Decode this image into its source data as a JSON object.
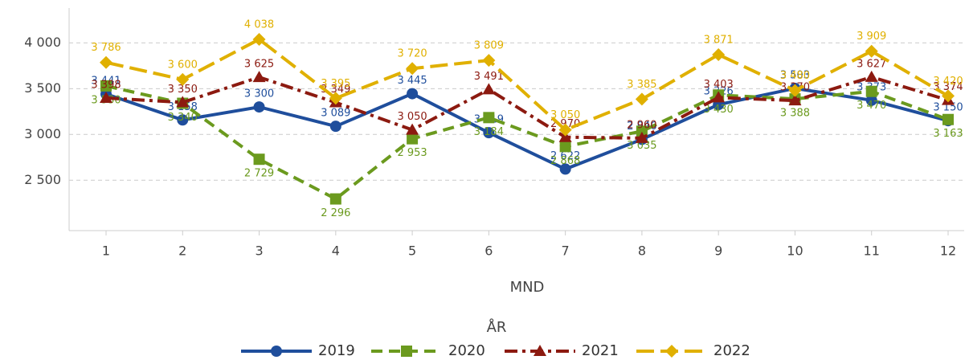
{
  "chart_data": {
    "type": "line",
    "x_label": "MND",
    "legend_title": "ÅR",
    "categories": [
      "1",
      "2",
      "3",
      "4",
      "5",
      "6",
      "7",
      "8",
      "9",
      "10",
      "11",
      "12"
    ],
    "ylim": [
      1950,
      4380
    ],
    "yticks": [
      {
        "value": 2500,
        "label": "2 500"
      },
      {
        "value": 3000,
        "label": "3 000"
      },
      {
        "value": 3500,
        "label": "3 500"
      },
      {
        "value": 4000,
        "label": "4 000"
      }
    ],
    "grid": true,
    "legend": "bottom",
    "series": [
      {
        "name": "2019",
        "color": "#1f4e9c",
        "marker": "circle",
        "dash": "solid",
        "values": [
          3441,
          3158,
          3300,
          3089,
          3445,
          3019,
          2622,
          2946,
          3326,
          3503,
          3373,
          3150
        ],
        "value_labels": [
          "3 441",
          "3 158",
          "3 300",
          "3 089",
          "3 445",
          "3 019",
          "2 622",
          "2 946",
          "3 326",
          "3 503",
          "3 373",
          "3 150"
        ]
      },
      {
        "name": "2020",
        "color": "#6b9a1e",
        "marker": "square",
        "dash": "dash",
        "values": [
          3530,
          3340,
          2729,
          2296,
          2953,
          3184,
          2868,
          3035,
          3430,
          3388,
          3470,
          3163
        ],
        "value_labels": [
          "3 530",
          "3 340",
          "2 729",
          "2 296",
          "2 953",
          "3 184",
          "2 868",
          "3 035",
          "3 430",
          "3 388",
          "3 470",
          "3 163"
        ]
      },
      {
        "name": "2021",
        "color": "#8c1a10",
        "marker": "triangle",
        "dash": "dashdot",
        "values": [
          3398,
          3350,
          3625,
          3349,
          3050,
          3491,
          2970,
          2960,
          3403,
          3370,
          3627,
          3374
        ],
        "value_labels": [
          "3 398",
          "3 350",
          "3 625",
          "3 349",
          "3 050",
          "3 491",
          "2 970",
          "2 960",
          "3 403",
          "3 370",
          "3 627",
          "3 374"
        ]
      },
      {
        "name": "2022",
        "color": "#e0b000",
        "marker": "diamond",
        "dash": "longdash",
        "values": [
          3786,
          3600,
          4038,
          3395,
          3720,
          3809,
          3050,
          3385,
          3871,
          3480,
          3909,
          3420
        ],
        "value_labels": [
          "3 786",
          "3 600",
          "4 038",
          "3 395",
          "3 720",
          "3 809",
          "3 050",
          "3 385",
          "3 871",
          "3 480",
          "3 909",
          "3 420"
        ]
      }
    ]
  }
}
